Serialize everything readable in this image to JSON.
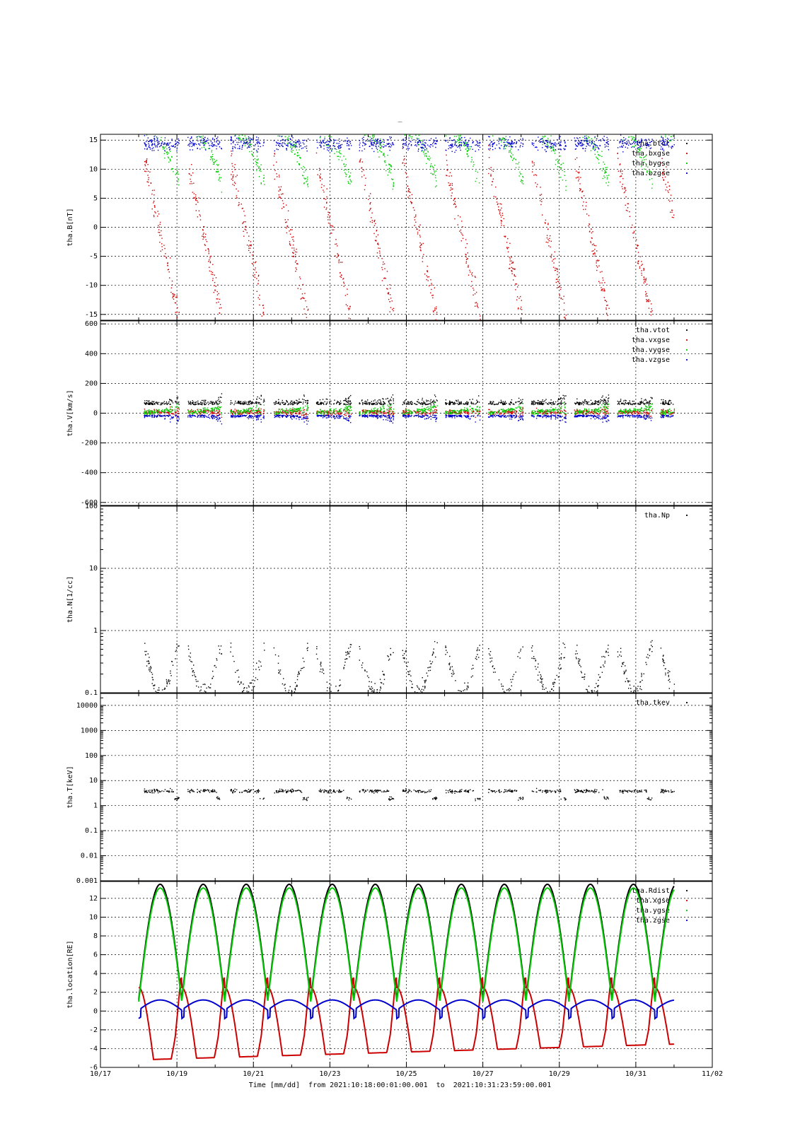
{
  "title": "_",
  "time_caption": "Time [mm/dd]  from 2021:10:18:00:01:00.001  to  2021:10:31:23:59:00.001",
  "x_ticks": [
    "10/17",
    "10/19",
    "10/21",
    "10/23",
    "10/25",
    "10/27",
    "10/29",
    "10/31",
    "11/02"
  ],
  "colors": {
    "black": "#000000",
    "red": "#cc0000",
    "green": "#00cc00",
    "blue": "#0000cc"
  },
  "chart_data": [
    {
      "type": "scatter",
      "ylabel": "tha.B[nT]",
      "ylim": [
        -16,
        16
      ],
      "yticks": [
        15,
        10,
        5,
        0,
        -5,
        -10,
        -15
      ],
      "ytick_labels": [
        "15",
        "10",
        "5",
        "0",
        "-5",
        "-10",
        "-15"
      ],
      "grid": true,
      "legend": "top-right",
      "series": [
        {
          "name": "tha.btot",
          "color": "black"
        },
        {
          "name": "tha.bxgse",
          "color": "red"
        },
        {
          "name": "tha.bygse",
          "color": "green"
        },
        {
          "name": "tha.bzgse",
          "color": "blue"
        }
      ]
    },
    {
      "type": "scatter",
      "ylabel": "tha.V[km/s]",
      "ylim": [
        -620,
        620
      ],
      "yticks": [
        600,
        400,
        200,
        0,
        -200,
        -400,
        -600
      ],
      "ytick_labels": [
        "600",
        "400",
        "200",
        "0",
        "-200",
        "-400",
        "-600"
      ],
      "grid": true,
      "legend": "top-right",
      "series": [
        {
          "name": "tha.vtot",
          "color": "black"
        },
        {
          "name": "tha.vxgse",
          "color": "red"
        },
        {
          "name": "tha.vygse",
          "color": "green"
        },
        {
          "name": "tha.vzgse",
          "color": "blue"
        }
      ]
    },
    {
      "type": "scatter",
      "ylabel": "tha.N[1/cc]",
      "yscale": "log",
      "ylim": [
        0.1,
        100
      ],
      "yticks": [
        100,
        10,
        1,
        0.1
      ],
      "ytick_labels": [
        "100",
        "10",
        "1",
        "0.1"
      ],
      "grid": true,
      "legend": "top-right",
      "series": [
        {
          "name": "tha.Np",
          "color": "black"
        }
      ]
    },
    {
      "type": "scatter",
      "ylabel": "tha.T[keV]",
      "yscale": "log",
      "ylim": [
        0.001,
        30000
      ],
      "yticks": [
        10000,
        1000,
        100,
        10,
        1,
        0.1,
        0.01,
        0.001
      ],
      "ytick_labels": [
        "10000",
        "1000",
        "100",
        "10",
        "1",
        "0.1",
        "0.01",
        "0.001"
      ],
      "grid": true,
      "legend": "top-right",
      "series": [
        {
          "name": "tha.tkev",
          "color": "black"
        }
      ]
    },
    {
      "type": "line",
      "ylabel": "tha.location[RE]",
      "ylim": [
        -6,
        13.8
      ],
      "yticks": [
        12,
        10,
        8,
        6,
        4,
        2,
        0,
        -2,
        -4,
        -6
      ],
      "ytick_labels": [
        "12",
        "10",
        "8",
        "6",
        "4",
        "2",
        "0",
        "-2",
        "-4",
        "-6"
      ],
      "grid": true,
      "legend": "top-right",
      "series": [
        {
          "name": "tha.Rdist",
          "color": "black"
        },
        {
          "name": "tha.xgse",
          "color": "red"
        },
        {
          "name": "tha.ygse",
          "color": "green"
        },
        {
          "name": "tha.zgse",
          "color": "blue"
        }
      ]
    }
  ]
}
